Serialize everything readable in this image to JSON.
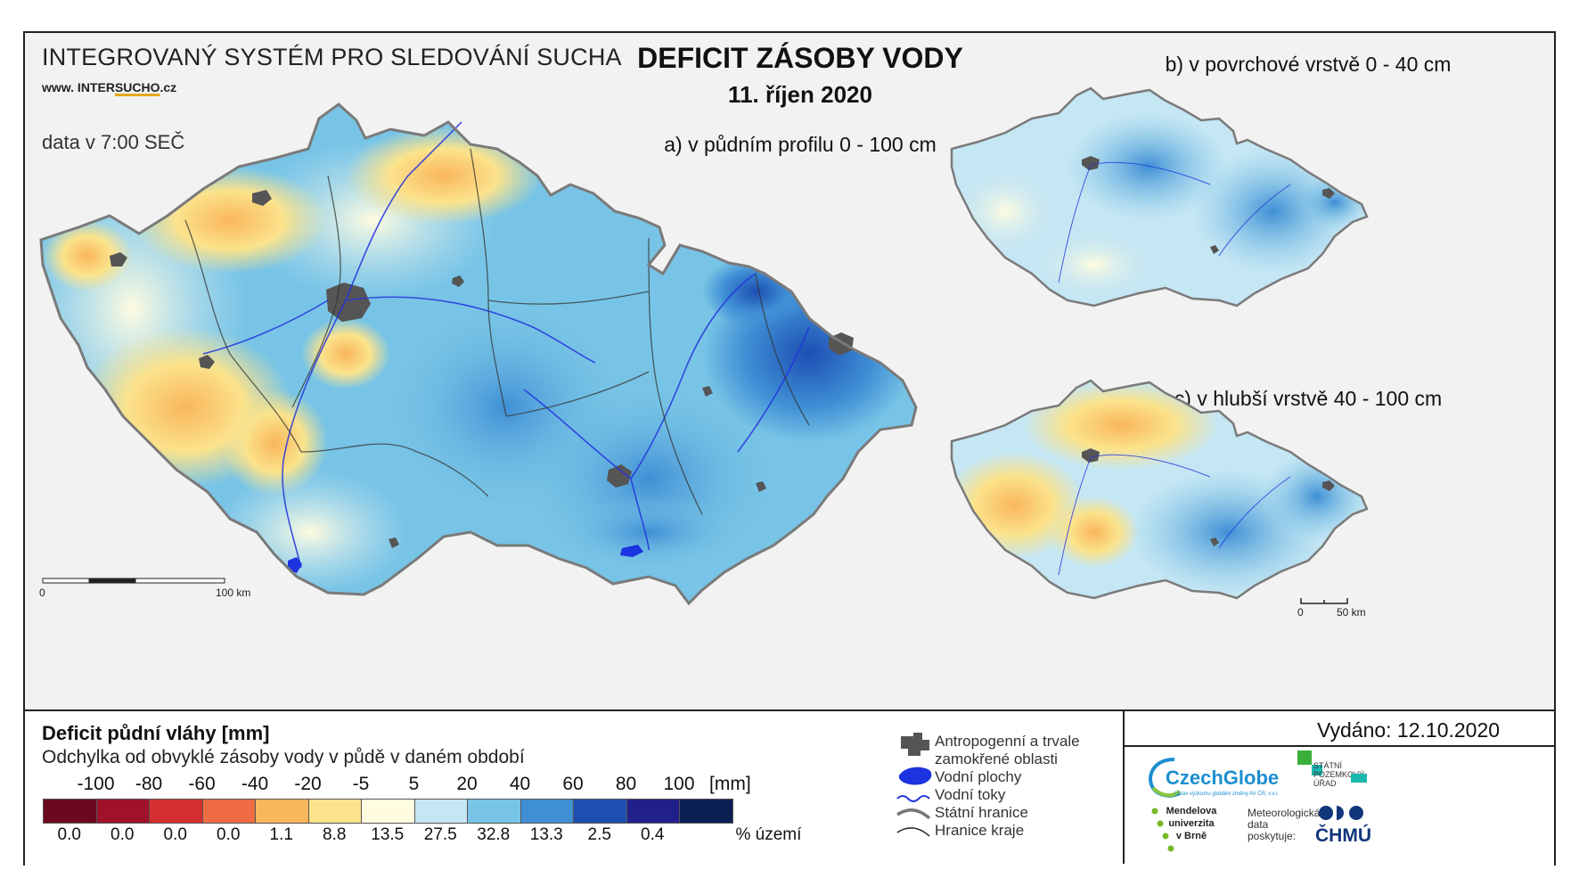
{
  "header": {
    "org_title": "INTEGROVANÝ SYSTÉM PRO SLEDOVÁNÍ SUCHA",
    "url_prefix": "www. INTER",
    "url_highlight": "SUCHO",
    "url_suffix": ".cz",
    "data_time": "data v 7:00 SEČ",
    "title": "DEFICIT ZÁSOBY VODY",
    "date": "11. říjen 2020"
  },
  "panels": {
    "a_label": "a) v půdním profilu 0 - 100 cm",
    "b_label": "b) v povrchové vrstvě 0 - 40 cm",
    "c_label": "c) v hlubší vrstvě 40 - 100 cm"
  },
  "scale_bars": {
    "main_start": "0",
    "main_end": "100 km",
    "small_start": "0",
    "small_end": "50 km"
  },
  "legend": {
    "title": "Deficit půdní vláhy  [mm]",
    "subtitle": "Odchylka od obvyklé zásoby vody v půdě v daném období",
    "unit": "[mm]",
    "pct_unit": "% území",
    "breaks": [
      "-100",
      "-80",
      "-60",
      "-40",
      "-20",
      "-5",
      "5",
      "20",
      "40",
      "60",
      "80",
      "100"
    ],
    "classes": [
      {
        "color": "#6b0a1e",
        "pct": "0.0"
      },
      {
        "color": "#a0112a",
        "pct": "0.0"
      },
      {
        "color": "#d53030",
        "pct": "0.0"
      },
      {
        "color": "#f06c42",
        "pct": "0.0"
      },
      {
        "color": "#f9b65b",
        "pct": "1.1"
      },
      {
        "color": "#fbe38c",
        "pct": "8.8"
      },
      {
        "color": "#fffce0",
        "pct": "13.5"
      },
      {
        "color": "#c5e6f3",
        "pct": "27.5"
      },
      {
        "color": "#78c4e6",
        "pct": "32.8"
      },
      {
        "color": "#3f8fd5",
        "pct": "13.3"
      },
      {
        "color": "#1d4fb3",
        "pct": "2.5"
      },
      {
        "color": "#21208a",
        "pct": "0.4"
      },
      {
        "color": "#0c1f52",
        "pct": ""
      }
    ]
  },
  "symbols": {
    "anthropogenic_line1": "Antropogenní a trvale",
    "anthropogenic_line2": "zamokřené oblasti",
    "water_bodies": "Vodní plochy",
    "water_streams": "Vodní toky",
    "state_border": "Státní hranice",
    "region_border": "Hranice kraje"
  },
  "issued": "Vydáno: 12.10.2020",
  "logos": {
    "czechglobe": "CzechGlobe",
    "czechglobe_sub": "Ústav výzkumu globální změny AV ČR, v.v.i.",
    "spu_line1": "STÁTNÍ",
    "spu_line2": "POZEMKOVÝ",
    "spu_line3": "ÚŘAD",
    "mendel_line1": "Mendelova",
    "mendel_line2": "univerzita",
    "mendel_line3": "v Brně",
    "meteo_line1": "Meteorologická",
    "meteo_line2": "data",
    "meteo_line3": "poskytuje:",
    "chmu": "ČHMÚ"
  },
  "colors": {
    "dry_strong": "#f9b65b",
    "dry_light": "#fbe38c",
    "normal": "#fffce0",
    "wet_light": "#c5e6f3",
    "wet": "#78c4e6",
    "wet_strong": "#3f8fd5",
    "very_wet": "#1d4fb3",
    "urban": "#555555",
    "river": "#2233dd",
    "border": "#777777"
  }
}
